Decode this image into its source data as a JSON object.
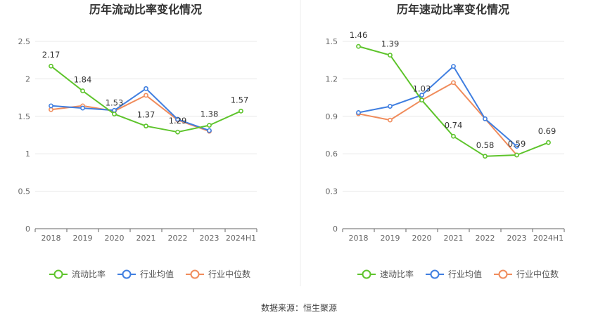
{
  "source": "数据来源：恒生聚源",
  "colors": {
    "company": "#5ec42c",
    "industry_avg": "#3f7ee0",
    "industry_median": "#f08c5c",
    "grid": "#e8e8e8",
    "axis": "#666666"
  },
  "chart_data": [
    {
      "type": "line",
      "title": "历年流动比率变化情况",
      "categories": [
        "2018",
        "2019",
        "2020",
        "2021",
        "2022",
        "2023",
        "2024H1"
      ],
      "ylim": [
        0,
        2.5
      ],
      "yticks": [
        "0",
        "0.5",
        "1",
        "1.5",
        "2",
        "2.5"
      ],
      "ytick_values": [
        0,
        0.5,
        1,
        1.5,
        2,
        2.5
      ],
      "legend_position": "bottom",
      "grid": true,
      "series": [
        {
          "name": "流动比率",
          "key": "company",
          "values": [
            2.17,
            1.84,
            1.53,
            1.37,
            1.29,
            1.38,
            1.57
          ],
          "labels": [
            "2.17",
            "1.84",
            "1.53",
            "1.37",
            "1.29",
            "1.38",
            "1.57"
          ]
        },
        {
          "name": "行业均值",
          "key": "industry_avg",
          "values": [
            1.64,
            1.61,
            1.58,
            1.87,
            1.46,
            1.31,
            null
          ]
        },
        {
          "name": "行业中位数",
          "key": "industry_median",
          "values": [
            1.59,
            1.64,
            1.57,
            1.78,
            1.45,
            1.3,
            null
          ]
        }
      ]
    },
    {
      "type": "line",
      "title": "历年速动比率变化情况",
      "categories": [
        "2018",
        "2019",
        "2020",
        "2021",
        "2022",
        "2023",
        "2024H1"
      ],
      "ylim": [
        0,
        1.5
      ],
      "yticks": [
        "0",
        "0.3",
        "0.6",
        "0.9",
        "1.2",
        "1.5"
      ],
      "ytick_values": [
        0,
        0.3,
        0.6,
        0.9,
        1.2,
        1.5
      ],
      "legend_position": "bottom",
      "grid": true,
      "series": [
        {
          "name": "速动比率",
          "key": "company",
          "values": [
            1.46,
            1.39,
            1.03,
            0.74,
            0.58,
            0.59,
            0.69
          ],
          "labels": [
            "1.46",
            "1.39",
            "1.03",
            "0.74",
            "0.58",
            "0.59",
            "0.69"
          ]
        },
        {
          "name": "行业均值",
          "key": "industry_avg",
          "values": [
            0.93,
            0.98,
            1.07,
            1.3,
            0.88,
            0.66,
            null
          ]
        },
        {
          "name": "行业中位数",
          "key": "industry_median",
          "values": [
            0.92,
            0.87,
            1.03,
            1.17,
            0.88,
            0.59,
            null
          ]
        }
      ]
    }
  ]
}
